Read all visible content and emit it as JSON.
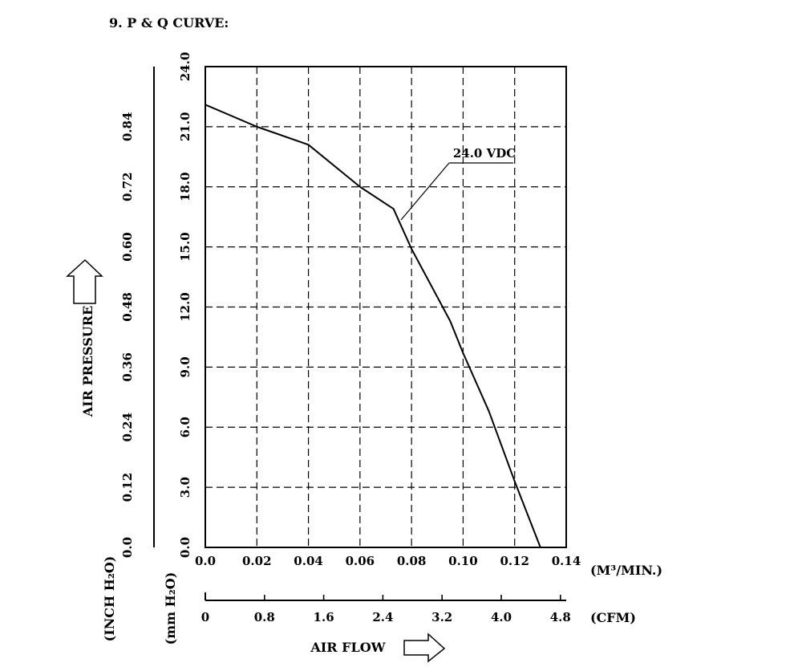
{
  "heading": "9. P & Q CURVE:",
  "chart_data": {
    "type": "line",
    "x_axis": {
      "ticks": [
        "0.0",
        "0.02",
        "0.04",
        "0.06",
        "0.08",
        "0.10",
        "0.12",
        "0.14"
      ],
      "unit": "(M³/MIN.)",
      "xlim": [
        0,
        0.14
      ]
    },
    "cfm_axis": {
      "ticks": [
        "0",
        "0.8",
        "1.6",
        "2.4",
        "3.2",
        "4.0",
        "4.8"
      ],
      "unit": "(CFM)"
    },
    "y_axis_mm": {
      "ticks": [
        "0.0",
        "3.0",
        "6.0",
        "9.0",
        "12.0",
        "15.0",
        "18.0",
        "21.0",
        "24.0"
      ],
      "unit": "(mm H₂O)",
      "ylim": [
        0,
        24
      ]
    },
    "y_axis_inch": {
      "ticks": [
        "0.0",
        "0.12",
        "0.24",
        "0.36",
        "0.48",
        "0.60",
        "0.72",
        "0.84"
      ],
      "unit": "(INCH H₂O)"
    },
    "xlabel": "AIR FLOW",
    "ylabel": "AIR PRESSURE",
    "grid": "dashed",
    "series": [
      {
        "name": "24.0 VDC",
        "x": [
          0.0,
          0.02,
          0.04,
          0.06,
          0.073,
          0.08,
          0.095,
          0.1,
          0.11,
          0.12,
          0.13
        ],
        "y": [
          22.1,
          21.0,
          20.1,
          18.0,
          16.9,
          14.9,
          11.3,
          9.7,
          6.8,
          3.3,
          0.0
        ]
      }
    ]
  }
}
